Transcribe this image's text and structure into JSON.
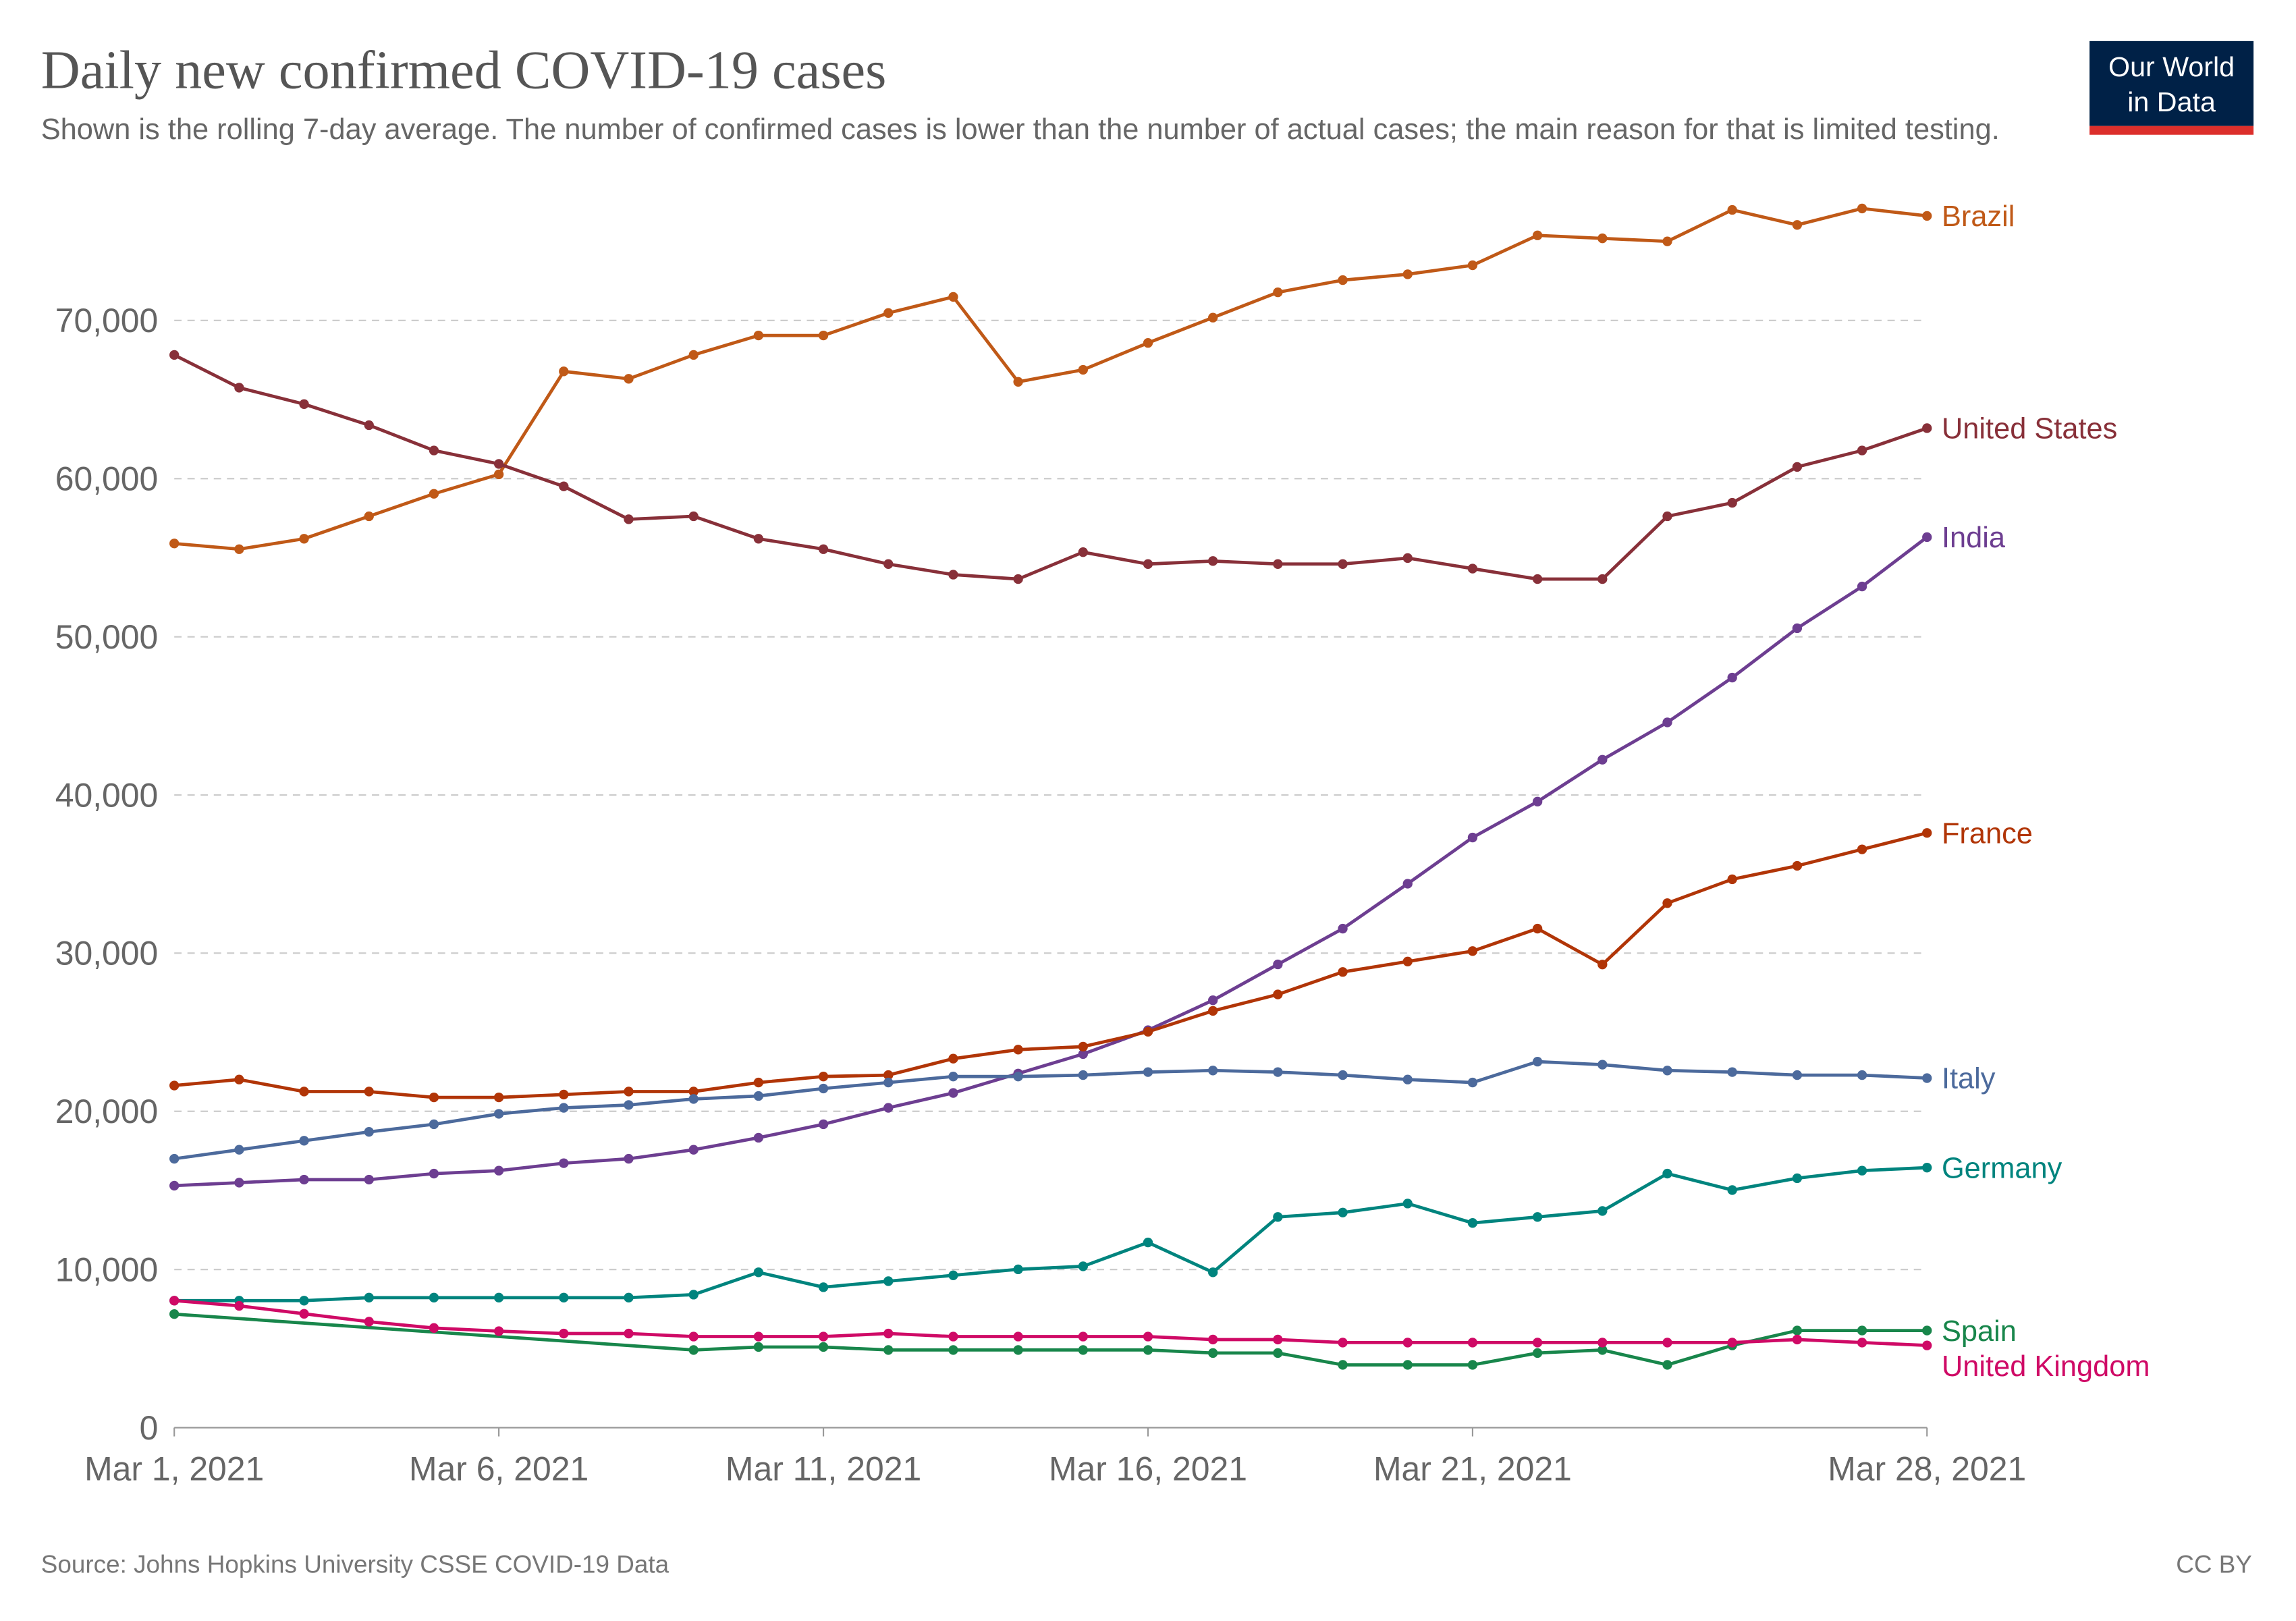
{
  "chart_data": {
    "type": "line",
    "title": "Daily new confirmed COVID-19 cases",
    "subtitle": "Shown is the rolling 7-day average. The number of confirmed cases is lower than the number of actual cases; the main reason for that is limited testing.",
    "source": "Source: Johns Hopkins University CSSE COVID-19 Data",
    "license": "CC BY",
    "logo": [
      "Our World",
      "in Data"
    ],
    "x": [
      "2021-03-01",
      "2021-03-02",
      "2021-03-03",
      "2021-03-04",
      "2021-03-05",
      "2021-03-06",
      "2021-03-07",
      "2021-03-08",
      "2021-03-09",
      "2021-03-10",
      "2021-03-11",
      "2021-03-12",
      "2021-03-13",
      "2021-03-14",
      "2021-03-15",
      "2021-03-16",
      "2021-03-17",
      "2021-03-18",
      "2021-03-19",
      "2021-03-20",
      "2021-03-21",
      "2021-03-22",
      "2021-03-23",
      "2021-03-24",
      "2021-03-25",
      "2021-03-26",
      "2021-03-27",
      "2021-03-28"
    ],
    "xlim": [
      "2021-03-01",
      "2021-03-28"
    ],
    "xticks": [
      {
        "value": "2021-03-01",
        "label": "Mar 1, 2021"
      },
      {
        "value": "2021-03-06",
        "label": "Mar 6, 2021"
      },
      {
        "value": "2021-03-11",
        "label": "Mar 11, 2021"
      },
      {
        "value": "2021-03-16",
        "label": "Mar 16, 2021"
      },
      {
        "value": "2021-03-21",
        "label": "Mar 21, 2021"
      },
      {
        "value": "2021-03-28",
        "label": "Mar 28, 2021"
      }
    ],
    "ylim": [
      0,
      76000
    ],
    "yticks": [
      0,
      {
        "value": 10000,
        "label": "10,000"
      },
      {
        "value": 20000,
        "label": "20,000"
      },
      {
        "value": 30000,
        "label": "30,000"
      },
      {
        "value": 40000,
        "label": "40,000"
      },
      {
        "value": 50000,
        "label": "50,000"
      },
      {
        "value": 60000,
        "label": "60,000"
      },
      {
        "value": 70000,
        "label": "70,000"
      }
    ],
    "grid": true,
    "series": [
      {
        "name": "Brazil",
        "color": "#c05917",
        "values": [
          55900,
          55540,
          56200,
          57620,
          59040,
          60270,
          66780,
          66310,
          67820,
          69050,
          69050,
          70470,
          71490,
          66120,
          66880,
          68580,
          70180,
          71780,
          72550,
          72920,
          73490,
          75380,
          75190,
          75000,
          76990,
          76040,
          77080,
          76610
        ]
      },
      {
        "name": "United States",
        "color": "#883039",
        "values": [
          67820,
          65750,
          64710,
          63380,
          61780,
          60930,
          59510,
          57430,
          57620,
          56200,
          55540,
          54600,
          53930,
          53650,
          55350,
          54600,
          54790,
          54600,
          54600,
          54980,
          54310,
          53650,
          53650,
          57620,
          58470,
          60740,
          61780,
          63190
        ]
      },
      {
        "name": "India",
        "color": "#6d3e91",
        "values": [
          15300,
          15490,
          15680,
          15680,
          16060,
          16250,
          16720,
          17000,
          17570,
          18330,
          19180,
          20220,
          21160,
          22390,
          23620,
          25130,
          27020,
          29290,
          31550,
          34390,
          37310,
          39580,
          42230,
          44590,
          47420,
          50540,
          53180,
          56300
        ]
      },
      {
        "name": "France",
        "color": "#b13507",
        "values": [
          21630,
          22010,
          21250,
          21250,
          20880,
          20880,
          21060,
          21250,
          21250,
          21820,
          22200,
          22290,
          23330,
          23900,
          24090,
          25030,
          26350,
          27390,
          28810,
          29470,
          30130,
          31550,
          29280,
          33160,
          34670,
          35520,
          36560,
          37600
        ]
      },
      {
        "name": "Italy",
        "color": "#4c6a9c",
        "values": [
          17000,
          17570,
          18140,
          18700,
          19180,
          19840,
          20220,
          20400,
          20780,
          20970,
          21440,
          21820,
          22200,
          22200,
          22290,
          22480,
          22580,
          22480,
          22290,
          22010,
          21820,
          23140,
          22950,
          22580,
          22480,
          22290,
          22290,
          22100
        ]
      },
      {
        "name": "Germany",
        "color": "#00847e",
        "values": [
          8030,
          8030,
          8030,
          8220,
          8220,
          8220,
          8220,
          8220,
          8410,
          9820,
          8880,
          9260,
          9630,
          10010,
          10200,
          11710,
          9820,
          13320,
          13600,
          14170,
          12940,
          13320,
          13700,
          16060,
          15020,
          15770,
          16250,
          16440
        ]
      },
      {
        "name": "Spain",
        "color": "#18864b",
        "x": [
          "2021-03-01",
          "2021-03-09",
          "2021-03-10",
          "2021-03-11",
          "2021-03-12",
          "2021-03-13",
          "2021-03-14",
          "2021-03-15",
          "2021-03-16",
          "2021-03-17",
          "2021-03-18",
          "2021-03-19",
          "2021-03-20",
          "2021-03-21",
          "2021-03-22",
          "2021-03-23",
          "2021-03-24",
          "2021-03-25",
          "2021-03-26",
          "2021-03-27",
          "2021-03-28"
        ],
        "values": [
          7180,
          4910,
          5100,
          5100,
          4910,
          4910,
          4910,
          4910,
          4910,
          4720,
          4720,
          3970,
          3970,
          3970,
          4720,
          4910,
          3970,
          5200,
          6140,
          6140,
          6140
        ]
      },
      {
        "name": "United Kingdom",
        "color": "#cf0a66",
        "values": [
          8030,
          7700,
          7200,
          6700,
          6300,
          6100,
          5950,
          5950,
          5760,
          5760,
          5760,
          5950,
          5760,
          5760,
          5760,
          5760,
          5570,
          5570,
          5380,
          5380,
          5380,
          5380,
          5380,
          5380,
          5380,
          5570,
          5380,
          5200
        ]
      }
    ]
  }
}
